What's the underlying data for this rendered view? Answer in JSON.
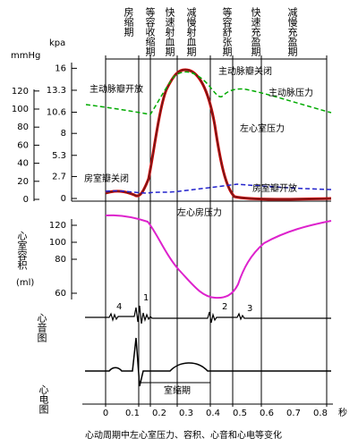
{
  "phases": [
    "房缩期",
    "等容收缩期",
    "快速射血期",
    "减慢射血期",
    "等容舒张期",
    "快速充盈期",
    "减慢充盈期"
  ],
  "pressure_axis": {
    "kpa_label": "kpa",
    "kpa_ticks": [
      16,
      13.3,
      10.6,
      8,
      5.3,
      2.7,
      0
    ],
    "mmhg_label": "mmHg",
    "mmhg_ticks": [
      120,
      100,
      80,
      60,
      40,
      20,
      0
    ]
  },
  "curve_labels": {
    "aortic_close": "主动脉瓣关闭",
    "aortic_open": "主动脉瓣开放",
    "aortic_pressure": "主动脉压力",
    "lv_pressure": "左心室压力",
    "av_close": "房室瓣关闭",
    "av_open": "房室瓣开放",
    "la_pressure": "左心房压力"
  },
  "volume_axis": {
    "label": "心室容积",
    "unit": "(ml)",
    "ticks": [
      120,
      100,
      80,
      60
    ]
  },
  "heart_sound": {
    "label": "心音图",
    "sounds": [
      "4",
      "1",
      "2",
      "3"
    ]
  },
  "ecg": {
    "label": "心电图",
    "systole": "室缩期"
  },
  "time_axis": {
    "ticks": [
      0,
      0.1,
      0.2,
      0.3,
      0.4,
      0.5,
      0.6,
      0.7,
      0.8
    ],
    "unit": "秒"
  },
  "caption": "心动周期中左心室压力、容积、心音和心电等变化"
}
